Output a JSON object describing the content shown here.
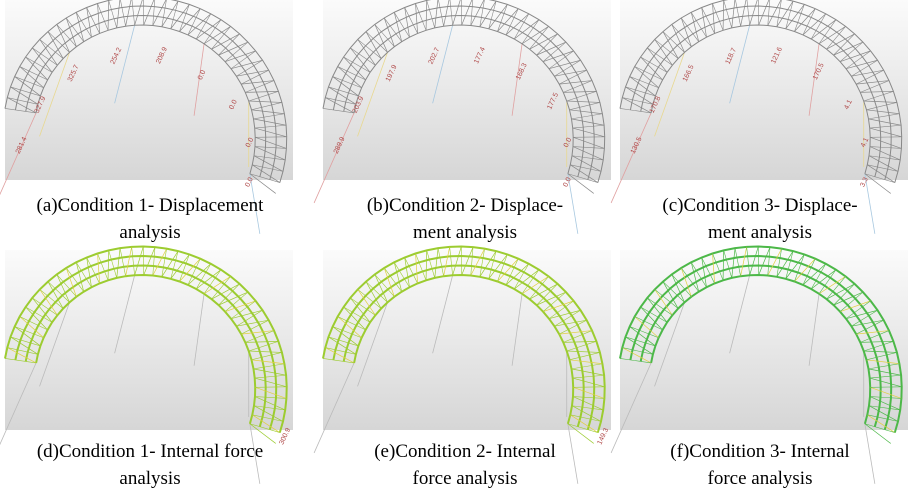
{
  "panels": [
    {
      "caption": [
        "(a)Condition 1- Displacement",
        "analysis"
      ],
      "labels": [
        "281.4",
        "327.9",
        "325.7",
        "254.2",
        "208.9",
        "0.0",
        "0.0",
        "0.0",
        "0.0"
      ]
    },
    {
      "caption": [
        "(b)Condition 2- Displace-",
        "ment analysis"
      ],
      "labels": [
        "289.9",
        "203.9",
        "197.9",
        "202.7",
        "177.4",
        "168.3",
        "177.5",
        "0.0",
        "0.0"
      ]
    },
    {
      "caption": [
        "(c)Condition 3- Displace-",
        "ment analysis"
      ],
      "labels": [
        "130.5",
        "170.8",
        "166.5",
        "118.7",
        "121.6",
        "170.5",
        "4.1",
        "4.1",
        "3.3"
      ]
    },
    {
      "caption": [
        "(d)Condition 1- Internal force",
        "analysis"
      ],
      "labels": [
        "300.9"
      ]
    },
    {
      "caption": [
        "(e)Condition 2- Internal",
        "force analysis"
      ],
      "labels": [
        "149.3"
      ]
    },
    {
      "caption": [
        "(f)Condition 3- Internal",
        "force analysis"
      ],
      "labels": []
    }
  ]
}
